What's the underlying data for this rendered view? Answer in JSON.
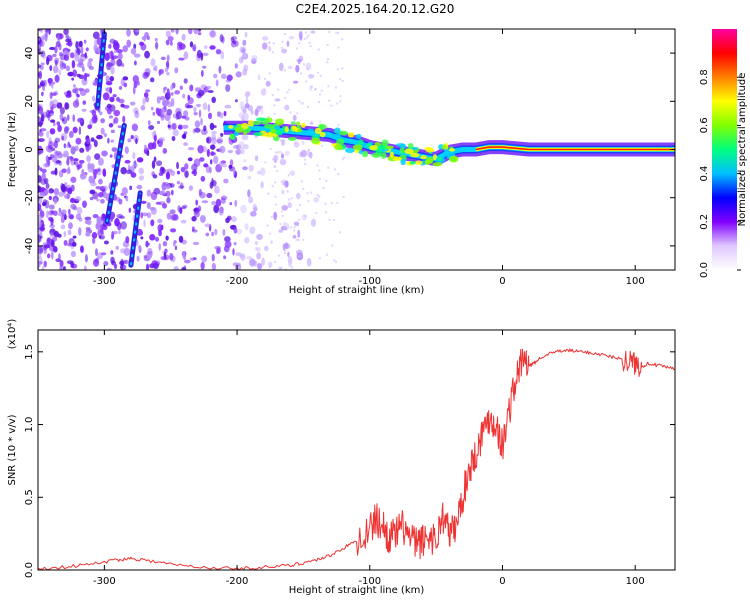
{
  "title": "C2E4.2025.164.20.12.G20",
  "chart_data": [
    {
      "type": "heatmap",
      "title": "C2E4.2025.164.20.12.G20",
      "xlabel": "Height of straight line (km)",
      "ylabel": "Frequency (Hz)",
      "xlim": [
        -350,
        130
      ],
      "ylim": [
        -50,
        50
      ],
      "xticks": [
        -300,
        -200,
        -100,
        0,
        100
      ],
      "yticks": [
        -40,
        -20,
        0,
        20,
        40
      ],
      "colorbar": {
        "label": "Normalized spectral amplitude",
        "range": [
          0.0,
          1.0
        ],
        "ticks": [
          0.0,
          0.2,
          0.4,
          0.6,
          0.8
        ],
        "colormap": [
          "#ffffff",
          "#e0c8ff",
          "#8000ff",
          "#0000ff",
          "#00bfff",
          "#00ff80",
          "#80ff00",
          "#ffff00",
          "#ff8000",
          "#ff0000",
          "#ff00a0"
        ]
      },
      "ridge": {
        "name": "",
        "points": [
          [
            -210,
            9
          ],
          [
            -190,
            9
          ],
          [
            -170,
            8
          ],
          [
            -150,
            7
          ],
          [
            -130,
            6
          ],
          [
            -120,
            4
          ],
          [
            -110,
            3
          ],
          [
            -100,
            1
          ],
          [
            -90,
            0
          ],
          [
            -80,
            -1
          ],
          [
            -70,
            -2
          ],
          [
            -60,
            -3
          ],
          [
            -50,
            -4
          ],
          [
            -40,
            -1
          ],
          [
            -30,
            0
          ],
          [
            -20,
            0
          ],
          [
            -10,
            1
          ],
          [
            0,
            1
          ],
          [
            20,
            0
          ],
          [
            60,
            0
          ],
          [
            100,
            0
          ],
          [
            130,
            0
          ]
        ]
      },
      "streaks": [
        {
          "points": [
            [
              -305,
              18
            ],
            [
              -300,
              48
            ]
          ]
        },
        {
          "points": [
            [
              -298,
              -30
            ],
            [
              -285,
              10
            ]
          ]
        },
        {
          "points": [
            [
              -280,
              -48
            ],
            [
              -273,
              -18
            ]
          ]
        }
      ]
    },
    {
      "type": "line",
      "xlabel": "Height of straight line (km)",
      "ylabel": "SNR (10 * v/v)",
      "y_multiplier": "(x10⁴)",
      "xlim": [
        -350,
        130
      ],
      "ylim": [
        0.0,
        1.65
      ],
      "xticks": [
        -300,
        -200,
        -100,
        0,
        100
      ],
      "yticks": [
        0.0,
        0.5,
        1.0,
        1.5
      ],
      "color": "#ee3333",
      "series": [
        {
          "x": [
            -350,
            -330,
            -310,
            -290,
            -280,
            -270,
            -250,
            -230,
            -200,
            -180,
            -160,
            -150,
            -140,
            -130,
            -120,
            -110,
            -100,
            -95,
            -90,
            -85,
            -80,
            -75,
            -70,
            -65,
            -60,
            -55,
            -50,
            -45,
            -40,
            -35,
            -30,
            -25,
            -20,
            -15,
            -10,
            -5,
            0,
            5,
            10,
            15,
            20,
            25,
            30,
            40,
            50,
            60,
            70,
            80,
            90,
            95,
            100,
            105,
            110,
            120,
            130
          ],
          "values": [
            0.01,
            0.02,
            0.04,
            0.07,
            0.08,
            0.07,
            0.04,
            0.02,
            0.01,
            0.02,
            0.03,
            0.05,
            0.07,
            0.1,
            0.15,
            0.2,
            0.28,
            0.35,
            0.3,
            0.22,
            0.25,
            0.3,
            0.22,
            0.18,
            0.2,
            0.24,
            0.2,
            0.38,
            0.25,
            0.3,
            0.5,
            0.7,
            0.8,
            0.95,
            1.05,
            1.0,
            0.85,
            1.1,
            1.3,
            1.45,
            1.4,
            1.43,
            1.47,
            1.5,
            1.51,
            1.5,
            1.49,
            1.47,
            1.45,
            1.44,
            1.42,
            1.4,
            1.42,
            1.4,
            1.38
          ]
        }
      ]
    }
  ]
}
